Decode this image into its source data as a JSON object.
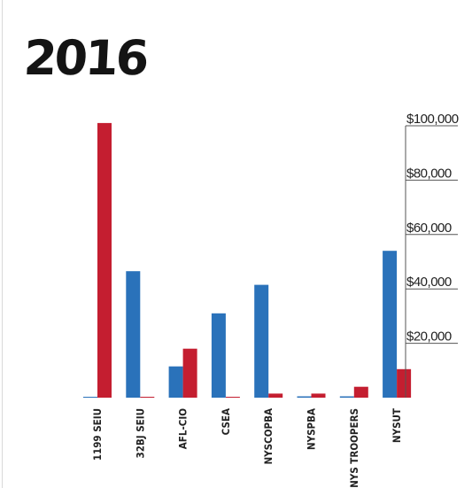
{
  "title": "2016",
  "colors": {
    "blue": "#2a72ba",
    "red": "#c41e30",
    "axis": "#555555"
  },
  "chart_data": {
    "type": "bar",
    "title": "2016",
    "categories": [
      "1199 SEIU",
      "32BJ SEIU",
      "AFL-CIO",
      "CSEA",
      "NYSCOPBA",
      "NYSPBA",
      "NYS TROOPERS",
      "NYSUT"
    ],
    "series": [
      {
        "values": [
          150,
          46500,
          11500,
          31000,
          41500,
          500,
          500,
          54000
        ]
      },
      {
        "values": [
          101000,
          300,
          18000,
          300,
          1500,
          1500,
          4000,
          10500
        ]
      }
    ],
    "ylim": [
      0,
      100000
    ],
    "yticks": [
      20000,
      40000,
      60000,
      80000,
      100000
    ],
    "ytick_labels": [
      "$20,000",
      "$40,000",
      "$60,000",
      "$80,000",
      "$100,000"
    ],
    "xlabel": "",
    "ylabel": "",
    "grid": false
  }
}
